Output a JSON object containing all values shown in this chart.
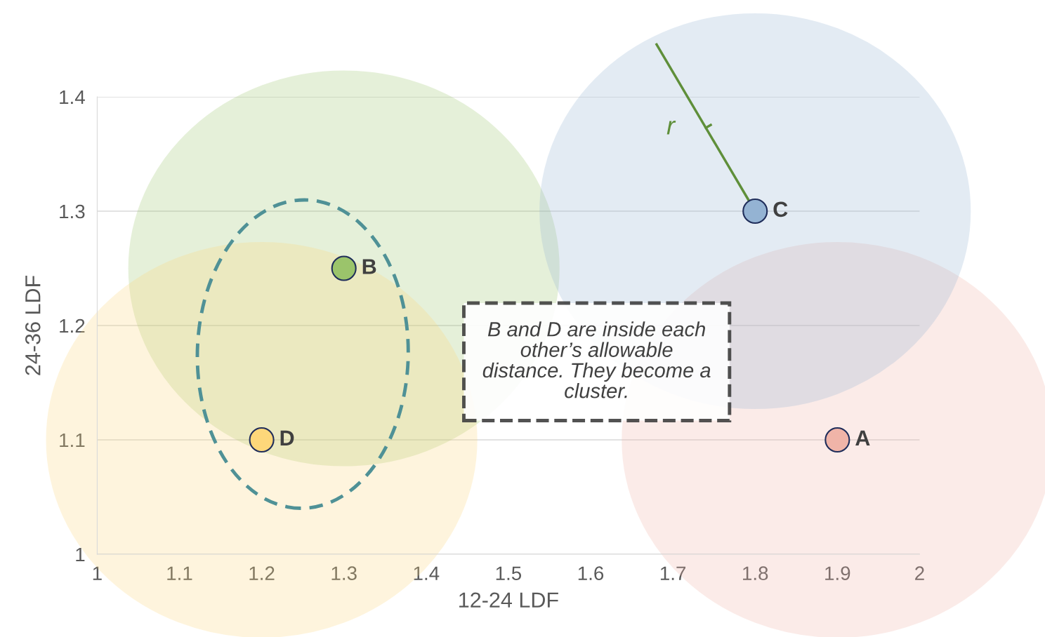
{
  "chart_data": {
    "type": "scatter",
    "xlabel": "12-24 LDF",
    "ylabel": "24-36 LDF",
    "xlim": [
      1,
      2
    ],
    "ylim": [
      1,
      1.4
    ],
    "xticks": [
      1,
      1.1,
      1.2,
      1.3,
      1.4,
      1.5,
      1.6,
      1.7,
      1.8,
      1.9,
      2
    ],
    "yticks": [
      1,
      1.1,
      1.2,
      1.3,
      1.4
    ],
    "grid": "y",
    "legend": false,
    "marker": "circle",
    "series": [
      {
        "name": "A",
        "color": "#f0b4a8",
        "x": [
          1.9
        ],
        "values": [
          1.1
        ]
      },
      {
        "name": "B",
        "color": "#9bc46b",
        "x": [
          1.3
        ],
        "values": [
          1.25
        ]
      },
      {
        "name": "C",
        "color": "#94b3d3",
        "x": [
          1.8
        ],
        "values": [
          1.3
        ]
      },
      {
        "name": "D",
        "color": "#fdd77a",
        "x": [
          1.2
        ],
        "values": [
          1.1
        ]
      }
    ],
    "annotations": [
      "r",
      "B and D are inside each other’s allowable distance. They become a cluster."
    ]
  }
}
